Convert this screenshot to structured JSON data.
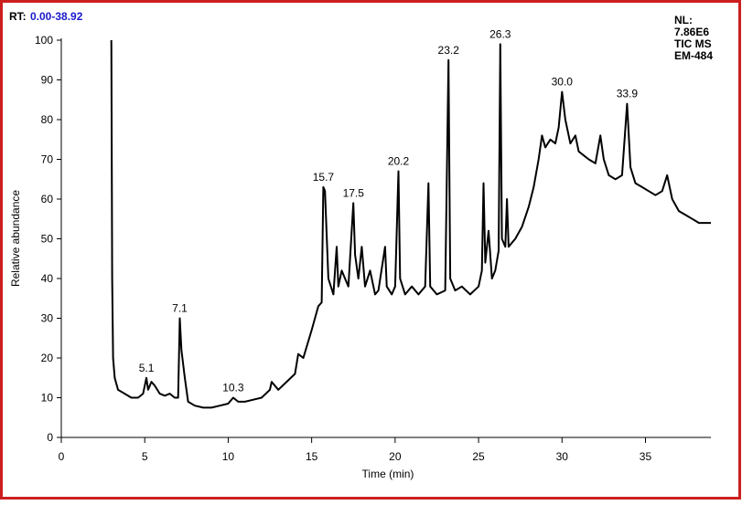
{
  "chart_data": {
    "type": "line",
    "rt_label": "RT:",
    "rt_range": "0.00-38.92",
    "note": [
      "NL:",
      "7.86E6",
      "TIC MS",
      "EM-484"
    ],
    "x_label": "Time (min)",
    "y_label": "Relative abundance",
    "color": "#000000",
    "xlim": [
      0,
      38.92
    ],
    "xticks": [
      0,
      5,
      10,
      15,
      20,
      25,
      30,
      35
    ],
    "ylim": [
      0,
      100
    ],
    "yticks": [
      0,
      10,
      20,
      30,
      40,
      50,
      60,
      70,
      80,
      90,
      100
    ],
    "x": [
      3.0,
      3.05,
      3.1,
      3.2,
      3.4,
      3.8,
      4.2,
      4.6,
      4.9,
      5.1,
      5.2,
      5.4,
      5.6,
      5.9,
      6.2,
      6.5,
      6.8,
      7.0,
      7.1,
      7.2,
      7.4,
      7.6,
      8.0,
      8.5,
      9.0,
      9.5,
      10.0,
      10.3,
      10.6,
      11.0,
      11.5,
      12.0,
      12.5,
      12.6,
      13.0,
      13.5,
      14.0,
      14.2,
      14.5,
      15.0,
      15.4,
      15.6,
      15.7,
      15.8,
      16.0,
      16.3,
      16.5,
      16.6,
      16.8,
      17.0,
      17.2,
      17.5,
      17.6,
      17.8,
      18.0,
      18.2,
      18.5,
      18.8,
      19.0,
      19.4,
      19.5,
      19.8,
      20.0,
      20.2,
      20.3,
      20.6,
      21.0,
      21.4,
      21.8,
      22.0,
      22.1,
      22.5,
      23.0,
      23.2,
      23.3,
      23.6,
      24.0,
      24.5,
      25.0,
      25.2,
      25.3,
      25.4,
      25.6,
      25.8,
      26.0,
      26.2,
      26.3,
      26.4,
      26.6,
      26.7,
      26.8,
      27.2,
      27.6,
      28.0,
      28.3,
      28.6,
      28.8,
      29.0,
      29.3,
      29.6,
      29.8,
      30.0,
      30.2,
      30.5,
      30.8,
      31.0,
      31.3,
      31.6,
      32.0,
      32.3,
      32.5,
      32.8,
      33.2,
      33.6,
      33.9,
      34.1,
      34.4,
      34.8,
      35.2,
      35.6,
      36.0,
      36.3,
      36.6,
      37.0,
      37.4,
      37.8,
      38.2,
      38.6,
      38.92
    ],
    "values": [
      100,
      40,
      20,
      15,
      12,
      11,
      10,
      10,
      11,
      15,
      12,
      14,
      13,
      11,
      10.5,
      11,
      10,
      10,
      30,
      22,
      15,
      9,
      8,
      7.5,
      7.5,
      8,
      8.5,
      10,
      9,
      9,
      9.5,
      10,
      12,
      14,
      12,
      14,
      16,
      21,
      20,
      27,
      33,
      34,
      63,
      62,
      40,
      36,
      48,
      38,
      42,
      40,
      38,
      59,
      46,
      40,
      48,
      38,
      42,
      36,
      37,
      48,
      38,
      36,
      38,
      67,
      40,
      36,
      38,
      36,
      38,
      64,
      38,
      36,
      37,
      95,
      40,
      37,
      38,
      36,
      38,
      42,
      64,
      44,
      52,
      40,
      42,
      47,
      99,
      50,
      48,
      60,
      48,
      50,
      53,
      58,
      63,
      70,
      76,
      73,
      75,
      74,
      78,
      87,
      80,
      74,
      76,
      72,
      71,
      70,
      69,
      76,
      70,
      66,
      65,
      66,
      84,
      68,
      64,
      63,
      62,
      61,
      62,
      66,
      60,
      57,
      56,
      55,
      54,
      54,
      54
    ],
    "peak_labels": [
      {
        "x": 5.1,
        "y": 15,
        "label": "5.1"
      },
      {
        "x": 7.1,
        "y": 30,
        "label": "7.1"
      },
      {
        "x": 10.3,
        "y": 10,
        "label": "10.3"
      },
      {
        "x": 15.7,
        "y": 63,
        "label": "15.7"
      },
      {
        "x": 17.5,
        "y": 59,
        "label": "17.5"
      },
      {
        "x": 20.2,
        "y": 67,
        "label": "20.2"
      },
      {
        "x": 23.2,
        "y": 95,
        "label": "23.2"
      },
      {
        "x": 26.3,
        "y": 99,
        "label": "26.3"
      },
      {
        "x": 30.0,
        "y": 87,
        "label": "30.0"
      },
      {
        "x": 33.9,
        "y": 84,
        "label": "33.9"
      }
    ]
  }
}
